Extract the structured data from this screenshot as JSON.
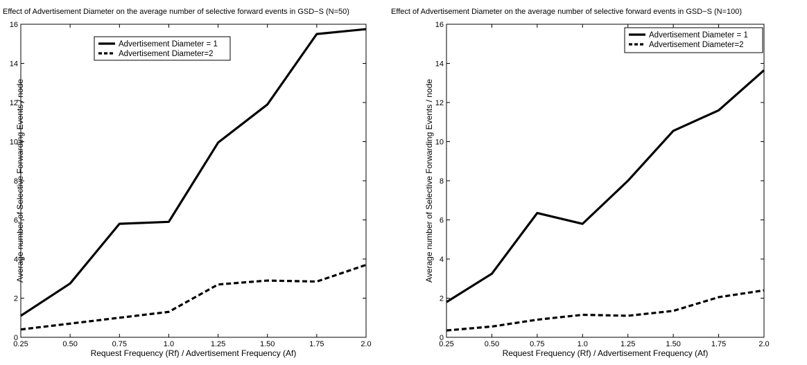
{
  "chart_data": [
    {
      "type": "line",
      "title": "Effect of Advertisement Diameter on the average number of selective forward events in GSD−S (N=50)",
      "xlabel": "Request Frequency (Rf) / Advertisement Frequency (Af)",
      "ylabel": "Average number of Selective Forwarding Events / node",
      "x": [
        0.25,
        0.5,
        0.75,
        1.0,
        1.25,
        1.5,
        1.75,
        2.0
      ],
      "xtick_labels": [
        "0.25",
        "0.50",
        "0.75",
        "1.0",
        "1.25",
        "1.50",
        "1.75",
        "2.0"
      ],
      "xlim": [
        0.25,
        2.0
      ],
      "ylim": [
        0,
        16
      ],
      "yticks": [
        0,
        2,
        4,
        6,
        8,
        10,
        12,
        14,
        16
      ],
      "grid": false,
      "legend_position": "top-center",
      "series": [
        {
          "name": "Advertisement Diameter = 1",
          "style": "solid",
          "color": "#000000",
          "values": [
            1.1,
            2.75,
            5.8,
            5.9,
            9.95,
            11.9,
            15.5,
            15.75
          ]
        },
        {
          "name": "Advertisement Diameter=2",
          "style": "dashed",
          "color": "#000000",
          "values": [
            0.4,
            0.7,
            1.0,
            1.3,
            2.7,
            2.9,
            2.85,
            3.7
          ]
        }
      ]
    },
    {
      "type": "line",
      "title": "Effect of Advertisement Diameter on the average number of selective forward events in GSD−S (N=100)",
      "xlabel": "Request Frequency (Rf) / Advertisement Frequency (Af)",
      "ylabel": "Average number of Selective Forwarding Events / node",
      "x": [
        0.25,
        0.5,
        0.75,
        1.0,
        1.25,
        1.5,
        1.75,
        2.0
      ],
      "xtick_labels": [
        "0.25",
        "0.50",
        "0.75",
        "1.0",
        "1.25",
        "1.50",
        "1.75",
        "2.0"
      ],
      "xlim": [
        0.25,
        2.0
      ],
      "ylim": [
        0,
        16
      ],
      "yticks": [
        0,
        2,
        4,
        6,
        8,
        10,
        12,
        14,
        16
      ],
      "grid": false,
      "legend_position": "top-right",
      "series": [
        {
          "name": "Advertisement Diameter = 1",
          "style": "solid",
          "color": "#000000",
          "values": [
            1.8,
            3.25,
            6.35,
            5.8,
            8.0,
            10.55,
            11.6,
            13.65
          ]
        },
        {
          "name": "Advertisement Diameter=2",
          "style": "dashed",
          "color": "#000000",
          "values": [
            0.35,
            0.55,
            0.9,
            1.15,
            1.1,
            1.35,
            2.05,
            2.4
          ]
        }
      ]
    }
  ]
}
